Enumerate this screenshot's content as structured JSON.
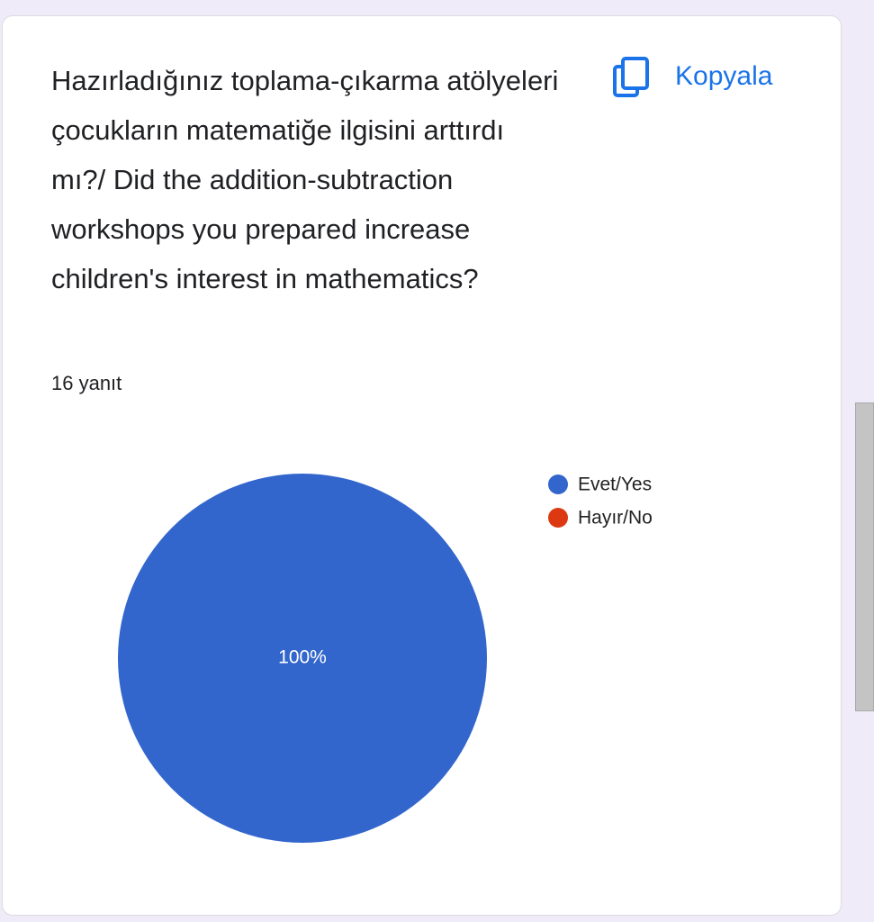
{
  "chart_data": {
    "type": "pie",
    "title": "Hazırladığınız toplama-çıkarma atölyeleri çocukların matematiğe ilgisini arttırdı mı?/ Did the addition-subtraction workshops you prepared increase children's interest in mathematics?",
    "subtitle": "16 yanıt",
    "copy_button": "Kopyala",
    "categories": [
      "Evet/Yes",
      "Hayır/No"
    ],
    "values": [
      100,
      0
    ],
    "value_labels": [
      "100%",
      null
    ],
    "colors": [
      "#3366cc",
      "#dc3912"
    ],
    "legend": "right"
  }
}
